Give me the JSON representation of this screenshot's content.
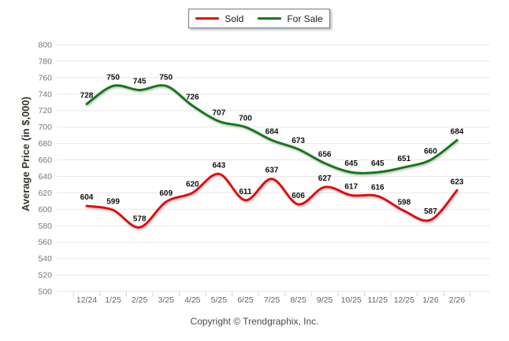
{
  "chart_data": {
    "type": "line",
    "x": [
      "12/24",
      "1/25",
      "2/25",
      "3/25",
      "4/25",
      "5/25",
      "6/25",
      "7/25",
      "8/25",
      "9/25",
      "10/25",
      "11/25",
      "12/25",
      "1/26",
      "2/26"
    ],
    "series": [
      {
        "name": "Sold",
        "color": "#e01010",
        "values": [
          604,
          599,
          578,
          609,
          620,
          643,
          611,
          637,
          606,
          627,
          617,
          616,
          598,
          587,
          623
        ]
      },
      {
        "name": "For Sale",
        "color": "#157815",
        "values": [
          728,
          750,
          745,
          750,
          726,
          707,
          700,
          684,
          673,
          656,
          645,
          645,
          651,
          660,
          684
        ]
      }
    ],
    "ylabel": "Average Price (in $,000)",
    "ylim": [
      500,
      800
    ],
    "ytick_step": 20,
    "grid": true,
    "legend_position": "top-center",
    "grid_color": "#e7e7e7",
    "y_tick_text_color": "#7e766b",
    "x_tick_text_color": "#5c6670",
    "data_label_color": "#111111"
  },
  "footer": {
    "copyright": "Copyright © Trendgraphix, Inc."
  }
}
